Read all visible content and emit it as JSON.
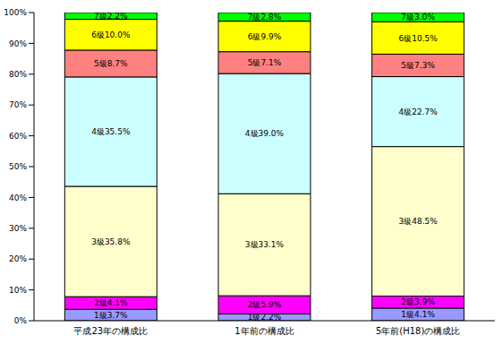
{
  "chart_data": {
    "type": "bar",
    "stacked": true,
    "data_labels": true,
    "grid": false,
    "categories": [
      "平成23年の構成比",
      "1年前の構成比",
      "5年前(H18)の構成比"
    ],
    "ylim": [
      0,
      100
    ],
    "yticks": [
      {
        "value": 0,
        "label": "0%"
      },
      {
        "value": 10,
        "label": "10%"
      },
      {
        "value": 20,
        "label": "20%"
      },
      {
        "value": 30,
        "label": "30%"
      },
      {
        "value": 40,
        "label": "40%"
      },
      {
        "value": 50,
        "label": "50%"
      },
      {
        "value": 60,
        "label": "60%"
      },
      {
        "value": 70,
        "label": "70%"
      },
      {
        "value": 80,
        "label": "80%"
      },
      {
        "value": 90,
        "label": "90%"
      },
      {
        "value": 100,
        "label": "100%"
      }
    ],
    "series": [
      {
        "name": "1級",
        "color": "#9999ff",
        "values": [
          3.7,
          2.2,
          4.1
        ],
        "value_labels": [
          "1級3.7%",
          "1級2.2%",
          "1級4.1%"
        ]
      },
      {
        "name": "2級",
        "color": "#ff00ff",
        "values": [
          4.1,
          5.9,
          3.9
        ],
        "value_labels": [
          "2級4.1%",
          "2級5.9%",
          "2級3.9%"
        ]
      },
      {
        "name": "3級",
        "color": "#ffffcc",
        "values": [
          35.8,
          33.1,
          48.5
        ],
        "value_labels": [
          "3級35.8%",
          "3級33.1%",
          "3級48.5%"
        ]
      },
      {
        "name": "4級",
        "color": "#ccffff",
        "values": [
          35.5,
          39.0,
          22.7
        ],
        "value_labels": [
          "4級35.5%",
          "4級39.0%",
          "4級22.7%"
        ]
      },
      {
        "name": "5級",
        "color": "#ff8080",
        "values": [
          8.7,
          7.1,
          7.3
        ],
        "value_labels": [
          "5級8.7%",
          "5級7.1%",
          "5級7.3%"
        ]
      },
      {
        "name": "6級",
        "color": "#ffff00",
        "values": [
          10.0,
          9.9,
          10.5
        ],
        "value_labels": [
          "6級10.0%",
          "6級9.9%",
          "6級10.5%"
        ]
      },
      {
        "name": "7級",
        "color": "#00ff00",
        "values": [
          2.2,
          2.8,
          3.0
        ],
        "value_labels": [
          "7級2.2%",
          "7級2.8%",
          "7級3.0%"
        ]
      }
    ]
  }
}
